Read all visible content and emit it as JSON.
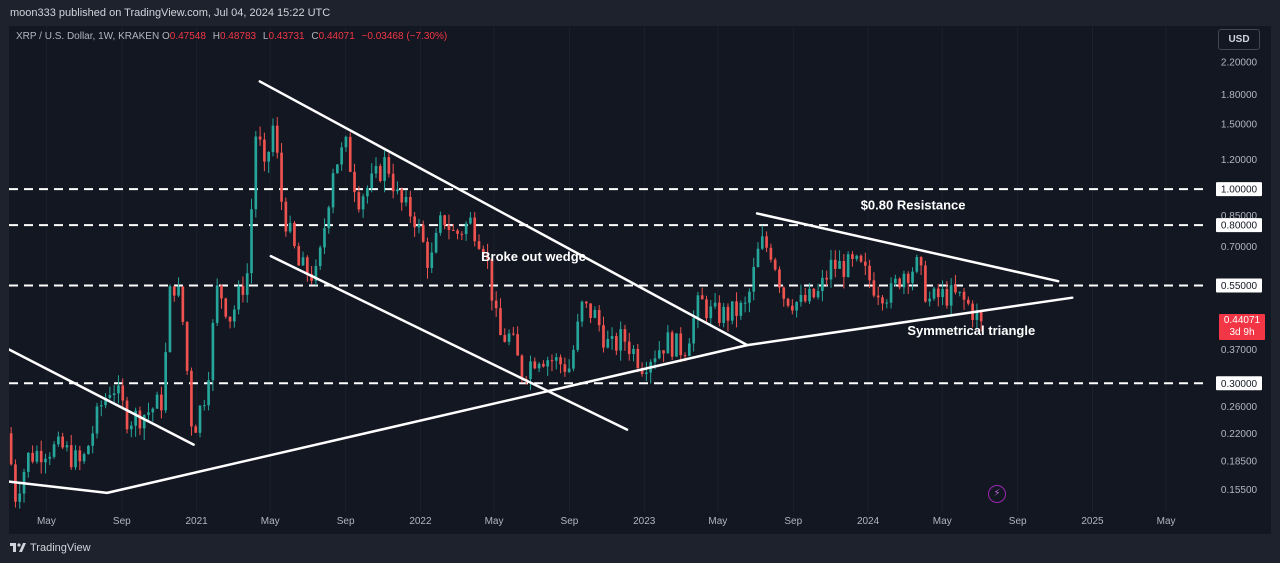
{
  "publisher": "moon333 published on TradingView.com, Jul 04, 2024 15:22 UTC",
  "legend": {
    "symbol": "XRP / U.S. Dollar, 1W, KRAKEN",
    "o_label": "O",
    "o": "0.47548",
    "h_label": "H",
    "h": "0.48783",
    "l_label": "L",
    "l": "0.43731",
    "c_label": "C",
    "c": "0.44071",
    "change": "−0.03468 (−7.30%)"
  },
  "currency_button": "USD",
  "price_tag": {
    "price": "0.44071",
    "countdown": "3d 9h"
  },
  "brand": "TradingView",
  "colors": {
    "up": "#26a69a",
    "down": "#ef5350",
    "background": "#131722",
    "lines": "#ffffff"
  },
  "chart_data": {
    "type": "candlestick",
    "title": "XRP / U.S. Dollar, 1W, KRAKEN",
    "y_scale": "log",
    "ylim": [
      0.135,
      2.65
    ],
    "xlim": [
      "2020-03-01",
      "2025-07-10"
    ],
    "y_ticks": [
      "2.20000",
      "1.80000",
      "1.50000",
      "1.20000",
      "1.00000",
      "0.85000",
      "0.80000",
      "0.70000",
      "0.55000",
      "0.37000",
      "0.30000",
      "0.26000",
      "0.22000",
      "0.18500",
      "0.15500"
    ],
    "y_tick_values": [
      2.2,
      1.8,
      1.5,
      1.2,
      1.0,
      0.85,
      0.8,
      0.7,
      0.55,
      0.37,
      0.3,
      0.26,
      0.22,
      0.185,
      0.155
    ],
    "boxed_ticks": [
      "1.00000",
      "0.80000",
      "0.55000",
      "0.30000"
    ],
    "x_ticks": [
      {
        "label": "May",
        "date": "2020-05-01"
      },
      {
        "label": "Sep",
        "date": "2020-09-01"
      },
      {
        "label": "2021",
        "date": "2021-01-01"
      },
      {
        "label": "May",
        "date": "2021-05-01"
      },
      {
        "label": "Sep",
        "date": "2021-09-01"
      },
      {
        "label": "2022",
        "date": "2022-01-01"
      },
      {
        "label": "May",
        "date": "2022-05-01"
      },
      {
        "label": "Sep",
        "date": "2022-09-01"
      },
      {
        "label": "2023",
        "date": "2023-01-01"
      },
      {
        "label": "May",
        "date": "2023-05-01"
      },
      {
        "label": "Sep",
        "date": "2023-09-01"
      },
      {
        "label": "2024",
        "date": "2024-01-01"
      },
      {
        "label": "May",
        "date": "2024-05-01"
      },
      {
        "label": "Sep",
        "date": "2024-09-01"
      },
      {
        "label": "2025",
        "date": "2025-01-01"
      },
      {
        "label": "May",
        "date": "2025-05-01"
      }
    ],
    "anchors": [
      [
        "2020-03-01",
        0.22
      ],
      [
        "2020-03-15",
        0.15
      ],
      [
        "2020-04-05",
        0.19
      ],
      [
        "2020-05-01",
        0.2
      ],
      [
        "2020-06-01",
        0.2
      ],
      [
        "2020-07-01",
        0.18
      ],
      [
        "2020-08-01",
        0.26
      ],
      [
        "2020-08-20",
        0.3
      ],
      [
        "2020-09-15",
        0.24
      ],
      [
        "2020-10-15",
        0.25
      ],
      [
        "2020-11-10",
        0.27
      ],
      [
        "2020-11-24",
        0.58
      ],
      [
        "2020-12-10",
        0.5
      ],
      [
        "2020-12-29",
        0.22
      ],
      [
        "2021-01-20",
        0.29
      ],
      [
        "2021-02-08",
        0.55
      ],
      [
        "2021-03-01",
        0.45
      ],
      [
        "2021-03-29",
        0.6
      ],
      [
        "2021-04-12",
        1.5
      ],
      [
        "2021-04-25",
        1.1
      ],
      [
        "2021-05-10",
        1.5
      ],
      [
        "2021-05-24",
        0.9
      ],
      [
        "2021-06-20",
        0.62
      ],
      [
        "2021-07-20",
        0.58
      ],
      [
        "2021-08-15",
        1.15
      ],
      [
        "2021-09-05",
        1.3
      ],
      [
        "2021-09-25",
        0.95
      ],
      [
        "2021-10-20",
        1.05
      ],
      [
        "2021-11-10",
        1.2
      ],
      [
        "2021-12-01",
        0.92
      ],
      [
        "2021-12-25",
        0.85
      ],
      [
        "2022-01-20",
        0.62
      ],
      [
        "2022-02-10",
        0.85
      ],
      [
        "2022-03-01",
        0.75
      ],
      [
        "2022-03-28",
        0.82
      ],
      [
        "2022-04-20",
        0.7
      ],
      [
        "2022-05-12",
        0.4
      ],
      [
        "2022-06-01",
        0.4
      ],
      [
        "2022-06-18",
        0.32
      ],
      [
        "2022-07-15",
        0.36
      ],
      [
        "2022-08-20",
        0.34
      ],
      [
        "2022-09-05",
        0.33
      ],
      [
        "2022-09-25",
        0.48
      ],
      [
        "2022-10-15",
        0.46
      ],
      [
        "2022-11-10",
        0.37
      ],
      [
        "2022-12-01",
        0.4
      ],
      [
        "2023-01-01",
        0.34
      ],
      [
        "2023-02-10",
        0.39
      ],
      [
        "2023-03-10",
        0.37
      ],
      [
        "2023-04-05",
        0.5
      ],
      [
        "2023-04-25",
        0.46
      ],
      [
        "2023-05-20",
        0.46
      ],
      [
        "2023-06-20",
        0.48
      ],
      [
        "2023-07-13",
        0.72
      ],
      [
        "2023-08-01",
        0.68
      ],
      [
        "2023-08-20",
        0.52
      ],
      [
        "2023-09-15",
        0.49
      ],
      [
        "2023-10-15",
        0.52
      ],
      [
        "2023-11-05",
        0.62
      ],
      [
        "2023-11-20",
        0.62
      ],
      [
        "2023-12-20",
        0.62
      ],
      [
        "2024-01-15",
        0.55
      ],
      [
        "2024-02-10",
        0.52
      ],
      [
        "2024-03-01",
        0.6
      ],
      [
        "2024-03-25",
        0.62
      ],
      [
        "2024-04-13",
        0.5
      ],
      [
        "2024-05-10",
        0.52
      ],
      [
        "2024-06-01",
        0.51
      ],
      [
        "2024-06-20",
        0.48
      ],
      [
        "2024-07-04",
        0.44071
      ]
    ],
    "horizontal_levels": [
      1.0,
      0.8,
      0.55,
      0.3
    ],
    "trendlines": [
      {
        "from": [
          "2020-03-01",
          0.37
        ],
        "to": [
          "2020-12-27",
          0.205
        ]
      },
      {
        "from": [
          "2020-03-01",
          0.163
        ],
        "to": [
          "2020-08-08",
          0.152
        ]
      },
      {
        "from": [
          "2020-08-08",
          0.152
        ],
        "to": [
          "2023-06-18",
          0.38
        ]
      },
      {
        "from": [
          "2023-06-18",
          0.38
        ],
        "to": [
          "2024-11-29",
          0.51
        ]
      },
      {
        "from": [
          "2021-04-14",
          1.95
        ],
        "to": [
          "2023-06-18",
          0.38
        ]
      },
      {
        "from": [
          "2021-05-02",
          0.66
        ],
        "to": [
          "2022-12-04",
          0.225
        ]
      },
      {
        "from": [
          "2023-07-04",
          0.86
        ],
        "to": [
          "2024-11-06",
          0.565
        ]
      }
    ],
    "annotations": [
      {
        "text": "Broke out wedge",
        "at": [
          "2022-04-10",
          0.64
        ]
      },
      {
        "text": "$0.80 Resistance",
        "at": [
          "2023-12-20",
          0.88
        ]
      },
      {
        "text": "Symmetrical triangle",
        "at": [
          "2024-03-05",
          0.405
        ]
      }
    ]
  }
}
